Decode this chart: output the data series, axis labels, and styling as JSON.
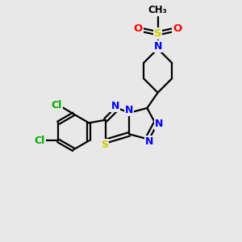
{
  "background_color": "#e8e8e8",
  "bond_color": "#000000",
  "atom_colors": {
    "N": "#0000ff",
    "S": "#cccc00",
    "Cl": "#00aa00",
    "O": "#ff0000",
    "C": "#000000"
  }
}
